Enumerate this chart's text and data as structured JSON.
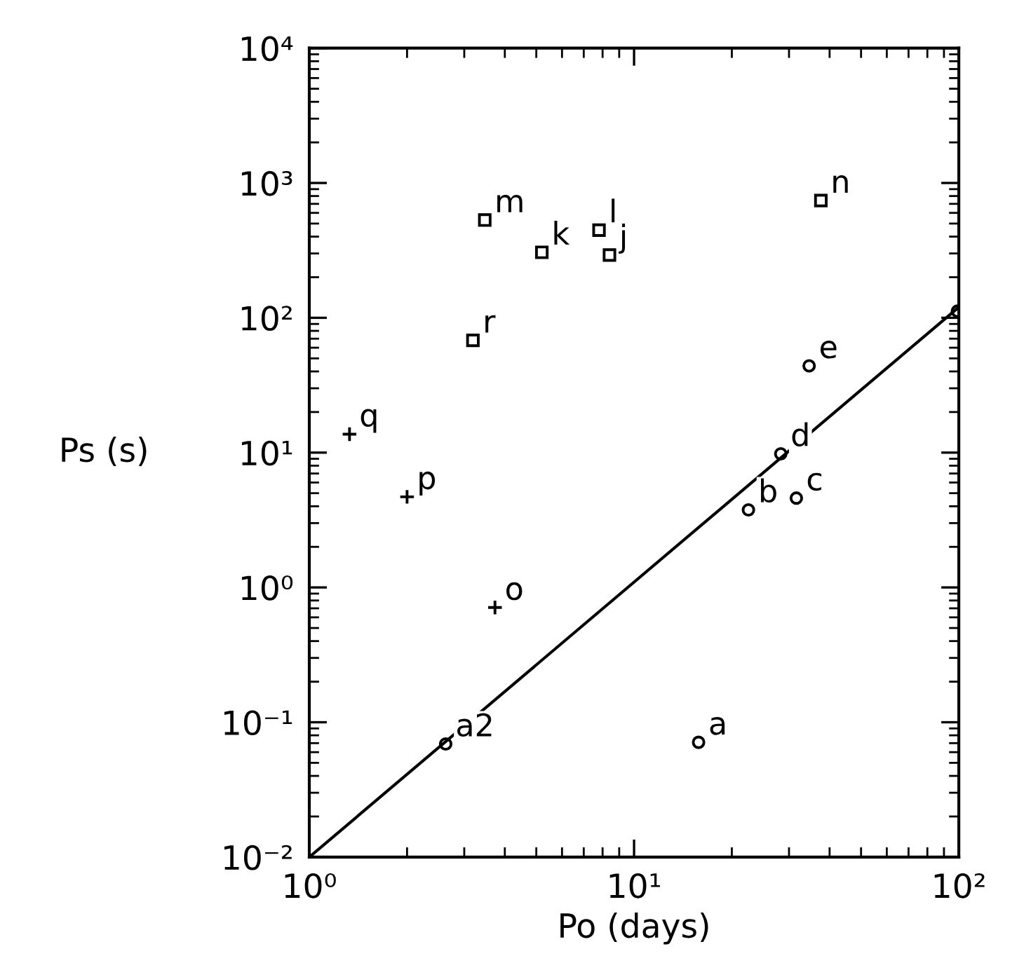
{
  "chart_data": {
    "type": "scatter",
    "xlabel": "Po (days)",
    "ylabel": "Ps (s)",
    "log": "xy",
    "xlim": [
      1,
      100
    ],
    "ylim": [
      0.01,
      10000
    ],
    "xticks": [
      {
        "value": 1,
        "label": "10⁰"
      },
      {
        "value": 10,
        "label": "10¹"
      },
      {
        "value": 100,
        "label": "10²"
      }
    ],
    "yticks": [
      {
        "value": 0.01,
        "label": "10⁻²"
      },
      {
        "value": 0.1,
        "label": "10⁻¹"
      },
      {
        "value": 1,
        "label": "10⁰"
      },
      {
        "value": 10,
        "label": "10¹"
      },
      {
        "value": 100,
        "label": "10²"
      },
      {
        "value": 1000,
        "label": "10³"
      },
      {
        "value": 10000,
        "label": "10⁴"
      }
    ],
    "grid": false,
    "series": [
      {
        "marker": "circle",
        "color": "#000000",
        "x": [
          2.63,
          15.8,
          22.5,
          31.6,
          28.3,
          34.6,
          99
        ],
        "values": [
          0.069,
          0.071,
          3.76,
          4.6,
          9.8,
          44,
          112
        ]
      },
      {
        "marker": "cross",
        "color": "#000000",
        "x": [
          1.33,
          2.0,
          3.73
        ],
        "values": [
          13.7,
          4.7,
          0.71
        ]
      },
      {
        "marker": "square",
        "color": "#000000",
        "x": [
          3.47,
          5.2,
          7.8,
          8.4,
          37.6,
          3.19
        ],
        "values": [
          531,
          306,
          447,
          292,
          741,
          68
        ]
      },
      {
        "type": "line",
        "line_style": "solid",
        "color": "#000000",
        "x": [
          1,
          100
        ],
        "values": [
          0.01,
          120
        ]
      }
    ],
    "annotations": [
      {
        "text": "a2",
        "x": 2.63,
        "y": 0.069
      },
      {
        "text": "a",
        "x": 15.8,
        "y": 0.071
      },
      {
        "text": "b",
        "x": 22.5,
        "y": 3.76
      },
      {
        "text": "c",
        "x": 31.6,
        "y": 4.6
      },
      {
        "text": "d",
        "x": 28.3,
        "y": 9.8
      },
      {
        "text": "e",
        "x": 34.6,
        "y": 44
      },
      {
        "text": "q",
        "x": 1.33,
        "y": 13.7
      },
      {
        "text": "p",
        "x": 2.0,
        "y": 4.7
      },
      {
        "text": "o",
        "x": 3.73,
        "y": 0.71
      },
      {
        "text": "m",
        "x": 3.47,
        "y": 531
      },
      {
        "text": "k",
        "x": 5.2,
        "y": 306
      },
      {
        "text": "l",
        "x": 7.8,
        "y": 447
      },
      {
        "text": "j",
        "x": 8.4,
        "y": 292
      },
      {
        "text": "n",
        "x": 37.6,
        "y": 741
      },
      {
        "text": "r",
        "x": 3.19,
        "y": 68
      }
    ]
  }
}
